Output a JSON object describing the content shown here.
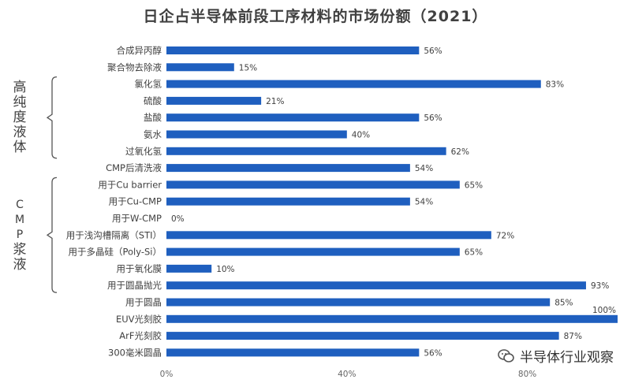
{
  "chart_data": {
    "type": "bar",
    "orientation": "horizontal",
    "title": "日企占半导体前段工序材料的市场份额（2021）",
    "xlabel": "",
    "ylabel": "",
    "xlim": [
      0,
      100
    ],
    "x_ticks": [
      "0%",
      "40%",
      "80%"
    ],
    "categories": [
      "合成异丙醇",
      "聚合物去除液",
      "氯化氢",
      "硫酸",
      "盐酸",
      "氨水",
      "过氧化氢",
      "CMP后清洗液",
      "用于Cu barrier",
      "用于Cu-CMP",
      "用于W-CMP",
      "用于浅沟槽隔离（STI）",
      "用于多晶硅（Poly-Si）",
      "用于氧化膜",
      "用于圆晶抛光",
      "用于圆晶",
      "EUV光刻胶",
      "ArF光刻胶",
      "300毫米圆晶"
    ],
    "values": [
      56,
      15,
      83,
      21,
      56,
      40,
      62,
      54,
      65,
      54,
      0,
      72,
      65,
      10,
      93,
      85,
      100,
      87,
      56
    ],
    "value_labels": [
      "56%",
      "15%",
      "83%",
      "21%",
      "56%",
      "40%",
      "62%",
      "54%",
      "65%",
      "54%",
      "0%",
      "72%",
      "65%",
      "10%",
      "93%",
      "85%",
      "100%",
      "87%",
      "56%"
    ],
    "groups": [
      {
        "label": "高纯度液体",
        "first": 2,
        "last": 6
      },
      {
        "label": "CMP浆液",
        "first": 8,
        "last": 14
      }
    ],
    "bar_color": "#1f5fbf",
    "grid": false
  },
  "watermark": {
    "text": "半导体行业观察",
    "icon": "wechat-icon"
  }
}
